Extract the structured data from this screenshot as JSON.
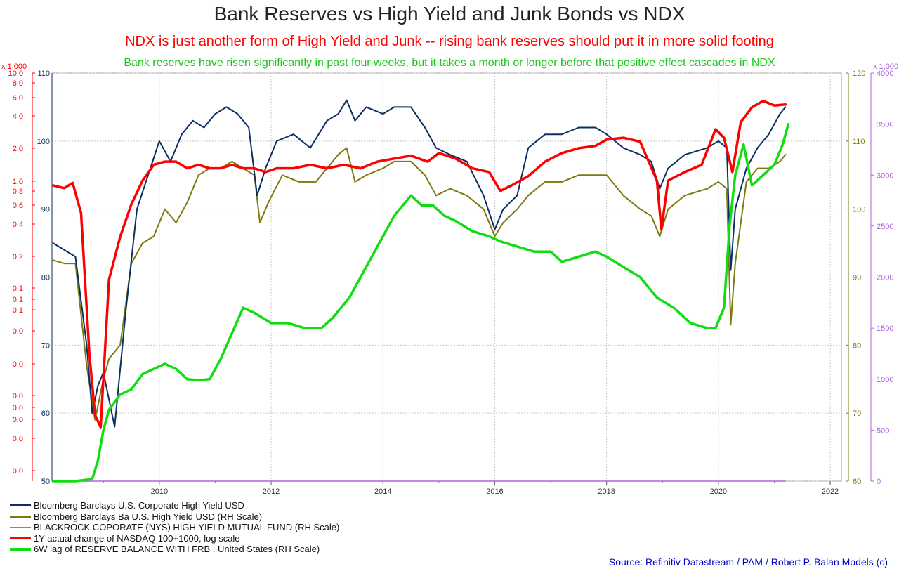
{
  "header": {
    "title": "Bank Reserves vs High Yield and Junk Bonds vs NDX",
    "subtitle": "NDX is just another form of High Yield and Junk -- rising bank reserves should put it in more solid footing",
    "subtitle2": "Bank reserves have risen significantly in past four weeks, but it takes a month or longer before that positive effect cascades in NDX"
  },
  "footer": {
    "source": "Source: Refinitiv Datastream / PAM /  Robert P. Balan Models (c)"
  },
  "colors": {
    "title": "#222222",
    "subtitle": "#ff0000",
    "subtitle2": "#18c818",
    "source": "#0000cc",
    "navy": "#0b2e63",
    "olive": "#7d7a0e",
    "purple": "#b060e0",
    "red": "#ff0000",
    "green": "#12dd12"
  },
  "chart_data": {
    "type": "line",
    "x_ticks": [
      "2010",
      "2012",
      "2014",
      "2016",
      "2018",
      "2020",
      "2022"
    ],
    "x_range": [
      2008.08,
      2022.2
    ],
    "axes": {
      "left_red": {
        "multiplier": "x 1,000",
        "scale": "log",
        "tick_labels": [
          "10.0",
          "8.0",
          "6.0",
          "4.0",
          "2.0",
          "1.0",
          "0.8",
          "0.6",
          "0.4",
          "0.2",
          "0.1",
          "0.1",
          "0.1",
          "0.0",
          "0.0",
          "0.0",
          "0.0",
          "0.0",
          "0.0",
          "0.0"
        ]
      },
      "left_navy": {
        "ticks": [
          "110",
          "100",
          "90",
          "80",
          "70",
          "60",
          "50"
        ],
        "range": [
          50,
          110
        ]
      },
      "right_olive": {
        "ticks": [
          "120",
          "110",
          "100",
          "90",
          "80",
          "70",
          "60"
        ],
        "range": [
          60,
          120
        ]
      },
      "right_purple": {
        "multiplier": "x 1,000",
        "ticks": [
          "4000",
          "3500",
          "3000",
          "2500",
          "2000",
          "1500",
          "1000",
          "500",
          "0"
        ],
        "range": [
          0,
          4000
        ]
      }
    },
    "legend": [
      "Bloomberg Barclays U.S. Corporate High Yield USD",
      "Bloomberg Barclays Ba U.S. High Yield USD (RH Scale)",
      "BLACKROCK COPORATE (NYS) HIGH YIELD MUTUAL FUND (RH Scale)",
      "1Y actual change of NASDAQ 100+1000, log scale",
      "6W lag of RESERVE BALANCE WITH FRB : United States (RH Scale)"
    ],
    "series": [
      {
        "name": "Bloomberg Barclays U.S. Corporate High Yield USD",
        "axis": "left_navy",
        "x": [
          2008.1,
          2008.3,
          2008.5,
          2008.7,
          2008.8,
          2008.9,
          2009.0,
          2009.2,
          2009.4,
          2009.6,
          2009.8,
          2010.0,
          2010.2,
          2010.4,
          2010.6,
          2010.8,
          2011.0,
          2011.2,
          2011.4,
          2011.6,
          2011.75,
          2011.9,
          2012.1,
          2012.4,
          2012.7,
          2013.0,
          2013.2,
          2013.35,
          2013.5,
          2013.7,
          2014.0,
          2014.2,
          2014.5,
          2014.75,
          2014.95,
          2015.2,
          2015.5,
          2015.8,
          2016.0,
          2016.15,
          2016.4,
          2016.6,
          2016.9,
          2017.2,
          2017.5,
          2017.8,
          2018.0,
          2018.3,
          2018.6,
          2018.8,
          2018.95,
          2019.1,
          2019.4,
          2019.8,
          2020.0,
          2020.15,
          2020.22,
          2020.3,
          2020.5,
          2020.7,
          2020.9,
          2021.1,
          2021.2
        ],
        "values": [
          85,
          84,
          83,
          70,
          60,
          64,
          66,
          58,
          75,
          90,
          95,
          100,
          97,
          101,
          103,
          102,
          104,
          105,
          104,
          102,
          92,
          96,
          100,
          101,
          99,
          103,
          104,
          106,
          103,
          105,
          104,
          105,
          105,
          102,
          99,
          98,
          97,
          92,
          87,
          90,
          92,
          99,
          101,
          101,
          102,
          102,
          101,
          99,
          98,
          97,
          93,
          96,
          98,
          99,
          100,
          99,
          81,
          90,
          96,
          99,
          101,
          104,
          105
        ]
      },
      {
        "name": "Bloomberg Barclays Ba U.S. High Yield USD (RH Scale)",
        "axis": "right_olive",
        "x": [
          2008.1,
          2008.3,
          2008.5,
          2008.7,
          2008.85,
          2009.0,
          2009.1,
          2009.3,
          2009.5,
          2009.7,
          2009.9,
          2010.1,
          2010.3,
          2010.5,
          2010.7,
          2010.9,
          2011.1,
          2011.3,
          2011.5,
          2011.7,
          2011.8,
          2011.95,
          2012.2,
          2012.5,
          2012.8,
          2013.0,
          2013.2,
          2013.35,
          2013.5,
          2013.7,
          2014.0,
          2014.2,
          2014.5,
          2014.75,
          2014.95,
          2015.2,
          2015.5,
          2015.8,
          2016.0,
          2016.15,
          2016.4,
          2016.6,
          2016.9,
          2017.2,
          2017.5,
          2017.8,
          2018.0,
          2018.3,
          2018.6,
          2018.8,
          2018.95,
          2019.1,
          2019.4,
          2019.8,
          2020.0,
          2020.15,
          2020.22,
          2020.3,
          2020.5,
          2020.7,
          2020.9,
          2021.1,
          2021.2
        ],
        "values": [
          92.5,
          92.0,
          92.0,
          77,
          69,
          75,
          78,
          80,
          92,
          95,
          96,
          100,
          98,
          101,
          105,
          106,
          106,
          107,
          106,
          105,
          98,
          101,
          105,
          104,
          104,
          106,
          108,
          109,
          104,
          105,
          106,
          107,
          107,
          105,
          102,
          103,
          102,
          100,
          96,
          98,
          100,
          102,
          104,
          104,
          105,
          105,
          105,
          102,
          100,
          99,
          96,
          100,
          102,
          103,
          104,
          103,
          83,
          92,
          104,
          106,
          106,
          107,
          108
        ]
      },
      {
        "name": "BLACKROCK COPORATE (NYS) HIGH YIELD MUTUAL FUND (RH Scale)",
        "axis": "right_purple",
        "x": [
          2008.1,
          2021.2
        ],
        "values": [
          0,
          0
        ]
      },
      {
        "name": "1Y actual change of NASDAQ 100+1000, log scale",
        "axis": "left_red",
        "x": [
          2008.1,
          2008.3,
          2008.45,
          2008.6,
          2008.75,
          2008.85,
          2008.95,
          2009.1,
          2009.3,
          2009.5,
          2009.7,
          2009.9,
          2010.1,
          2010.3,
          2010.5,
          2010.7,
          2010.9,
          2011.1,
          2011.3,
          2011.5,
          2011.7,
          2011.9,
          2012.1,
          2012.4,
          2012.7,
          2013.0,
          2013.3,
          2013.6,
          2013.9,
          2014.2,
          2014.5,
          2014.8,
          2015.0,
          2015.3,
          2015.6,
          2015.9,
          2016.1,
          2016.3,
          2016.6,
          2016.9,
          2017.2,
          2017.5,
          2017.8,
          2018.0,
          2018.3,
          2018.6,
          2018.9,
          2018.98,
          2019.1,
          2019.4,
          2019.7,
          2019.95,
          2020.1,
          2020.25,
          2020.4,
          2020.6,
          2020.8,
          2021.0,
          2021.2
        ],
        "values": [
          0.9,
          0.85,
          0.95,
          0.5,
          0.03,
          0.01,
          0.008,
          0.12,
          0.3,
          0.6,
          1.0,
          1.4,
          1.5,
          1.5,
          1.3,
          1.4,
          1.3,
          1.3,
          1.4,
          1.3,
          1.3,
          1.2,
          1.3,
          1.3,
          1.4,
          1.3,
          1.4,
          1.3,
          1.5,
          1.6,
          1.7,
          1.5,
          1.8,
          1.6,
          1.3,
          1.2,
          0.8,
          0.9,
          1.1,
          1.5,
          1.8,
          2.0,
          2.1,
          2.4,
          2.5,
          2.3,
          1.0,
          0.35,
          1.0,
          1.2,
          1.4,
          3.0,
          2.5,
          1.2,
          3.5,
          4.8,
          5.5,
          5.0,
          5.1
        ]
      },
      {
        "name": "6W lag of RESERVE BALANCE WITH FRB : United States (RH Scale)",
        "axis": "right_purple",
        "x": [
          2008.1,
          2008.5,
          2008.8,
          2008.9,
          2009.0,
          2009.1,
          2009.3,
          2009.5,
          2009.7,
          2009.9,
          2010.1,
          2010.3,
          2010.5,
          2010.7,
          2010.9,
          2011.1,
          2011.3,
          2011.5,
          2011.7,
          2011.85,
          2012.0,
          2012.3,
          2012.6,
          2012.9,
          2013.1,
          2013.4,
          2013.7,
          2014.0,
          2014.2,
          2014.5,
          2014.7,
          2014.9,
          2015.1,
          2015.3,
          2015.6,
          2015.9,
          2016.1,
          2016.4,
          2016.7,
          2017.0,
          2017.2,
          2017.5,
          2017.8,
          2018.0,
          2018.3,
          2018.6,
          2018.9,
          2019.2,
          2019.5,
          2019.8,
          2019.95,
          2020.1,
          2020.2,
          2020.3,
          2020.45,
          2020.6,
          2020.8,
          2021.0,
          2021.15,
          2021.25
        ],
        "values": [
          0,
          0,
          20,
          200,
          500,
          700,
          850,
          900,
          1050,
          1100,
          1150,
          1100,
          1000,
          990,
          1000,
          1200,
          1450,
          1700,
          1650,
          1600,
          1550,
          1550,
          1500,
          1500,
          1600,
          1800,
          2100,
          2400,
          2600,
          2800,
          2700,
          2700,
          2600,
          2550,
          2450,
          2400,
          2350,
          2300,
          2250,
          2250,
          2150,
          2200,
          2250,
          2200,
          2100,
          2000,
          1800,
          1700,
          1550,
          1500,
          1500,
          1700,
          2500,
          3000,
          3300,
          2900,
          3000,
          3100,
          3300,
          3500
        ]
      }
    ]
  }
}
